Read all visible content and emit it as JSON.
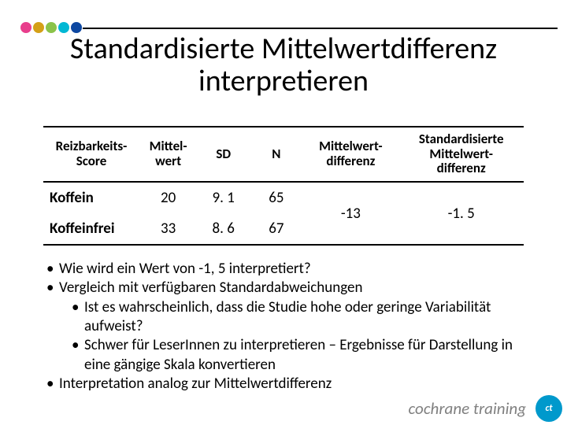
{
  "header": {
    "dot_colors": [
      "#e83e8c",
      "#d4a017",
      "#8bc34a",
      "#00b8d4",
      "#0d47a1"
    ],
    "line_color": "#000000"
  },
  "title_line1": "Standardisierte Mittelwertdifferenz",
  "title_line2": "interpretieren",
  "table": {
    "columns": [
      "Reizbarkeits-Score",
      "Mittel-wert",
      "SD",
      "N",
      "Mittelwert-differenz",
      "Standardisierte Mittelwert-differenz"
    ],
    "col_widths_pct": [
      20,
      12,
      11,
      11,
      20,
      26
    ],
    "rows": [
      {
        "label": "Koffein",
        "mittelwert": "20",
        "sd": "9. 1",
        "n": "65"
      },
      {
        "label": "Koffeinfrei",
        "mittelwert": "33",
        "sd": "8. 6",
        "n": "67"
      }
    ],
    "mw_diff": "-13",
    "smw_diff": "-1. 5",
    "border_color": "#000000",
    "header_fontsize_pt": 13,
    "cell_fontsize_pt": 14
  },
  "bullets": {
    "items": [
      {
        "level": 0,
        "text": "Wie wird ein Wert von -1, 5 interpretiert?"
      },
      {
        "level": 0,
        "text": "Vergleich mit verfügbaren Standardabweichungen"
      },
      {
        "level": 1,
        "text": "Ist es wahrscheinlich, dass die Studie hohe oder geringe Variabilität aufweist?"
      },
      {
        "level": 1,
        "text": "Schwer für LeserInnen zu interpretieren – Ergebnisse für Darstellung in eine gängige Skala konvertieren"
      },
      {
        "level": 0,
        "text": "Interpretation analog zur Mittelwertdifferenz"
      }
    ],
    "fontsize_pt": 14
  },
  "footer": {
    "text": "cochrane training",
    "color": "#808080",
    "badge_bg": "#0099cc",
    "badge_text": "ct"
  }
}
